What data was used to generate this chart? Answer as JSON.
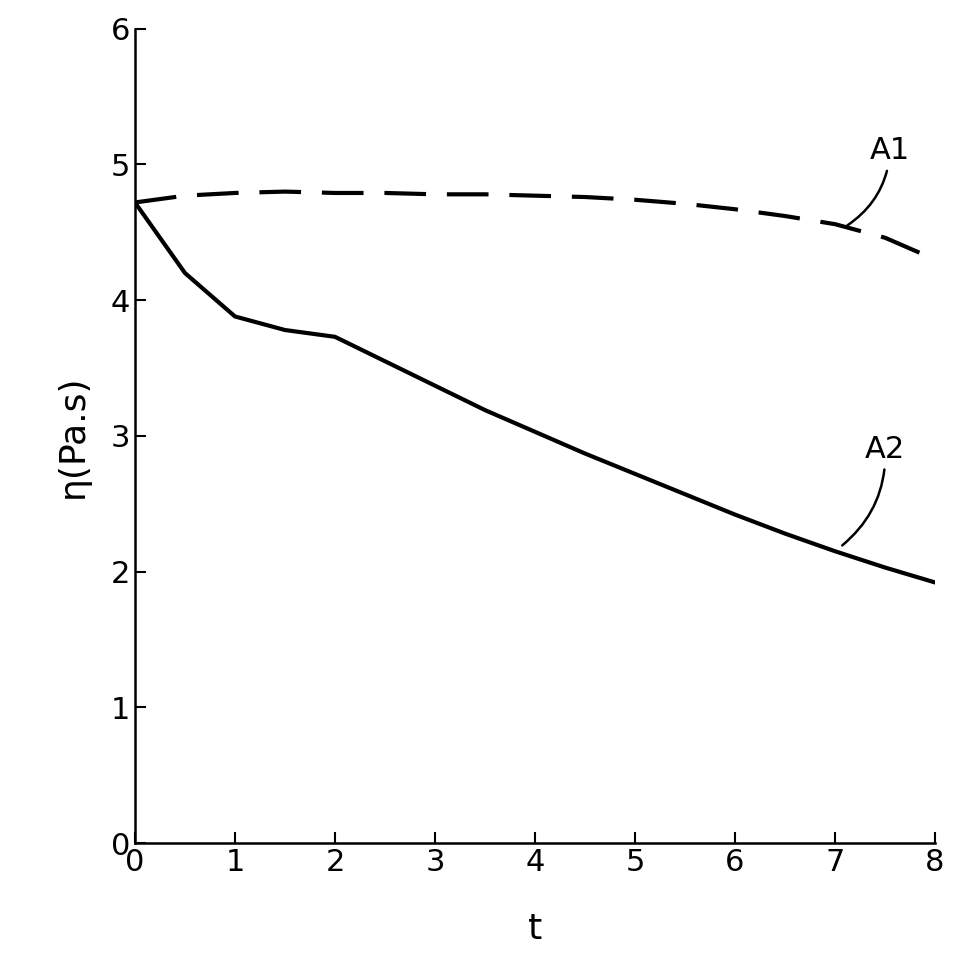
{
  "title": "",
  "xlabel": "t",
  "ylabel": "η(Pa.s)",
  "xlim": [
    0,
    8
  ],
  "ylim": [
    0,
    6
  ],
  "xticks": [
    0,
    1,
    2,
    3,
    4,
    5,
    6,
    7,
    8
  ],
  "yticks": [
    0,
    1,
    2,
    3,
    4,
    5,
    6
  ],
  "A1_x": [
    0,
    0.5,
    1.0,
    1.5,
    2.0,
    2.5,
    3.0,
    3.5,
    4.0,
    4.5,
    5.0,
    5.5,
    6.0,
    6.5,
    7.0,
    7.5,
    8.0
  ],
  "A1_y": [
    4.72,
    4.77,
    4.79,
    4.8,
    4.79,
    4.79,
    4.78,
    4.78,
    4.77,
    4.76,
    4.74,
    4.71,
    4.67,
    4.62,
    4.56,
    4.46,
    4.3
  ],
  "A2_x": [
    0,
    0.5,
    1.0,
    1.5,
    2.0,
    2.5,
    3.0,
    3.5,
    4.0,
    4.5,
    5.0,
    5.5,
    6.0,
    6.5,
    7.0,
    7.5,
    8.0
  ],
  "A2_y": [
    4.72,
    4.2,
    3.88,
    3.78,
    3.73,
    3.55,
    3.37,
    3.19,
    3.03,
    2.87,
    2.72,
    2.57,
    2.42,
    2.28,
    2.15,
    2.03,
    1.92
  ],
  "line_color": "#000000",
  "linewidth": 3.0,
  "background_color": "#ffffff",
  "annotation_fontsize": 22,
  "axis_label_fontsize": 26,
  "tick_label_fontsize": 22
}
